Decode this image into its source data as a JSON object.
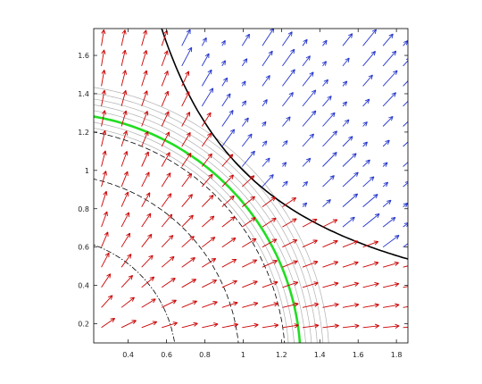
{
  "chart_data": {
    "type": "vector_field",
    "title": "",
    "xlabel": "",
    "ylabel": "",
    "xlim": [
      0.22,
      1.86
    ],
    "ylim": [
      0.1,
      1.74
    ],
    "grid": false,
    "legend": "none",
    "x_ticks": [
      0.4,
      0.6,
      0.8,
      1.0,
      1.2,
      1.4,
      1.6,
      1.8
    ],
    "x_tick_labels": [
      "0.4",
      "0.6",
      "0.8",
      "1",
      "1.2",
      "1.4",
      "1.6",
      "1.8"
    ],
    "y_ticks": [
      0.2,
      0.4,
      0.6,
      0.8,
      1.0,
      1.2,
      1.4,
      1.6
    ],
    "y_tick_labels": [
      "0.2",
      "0.4",
      "0.6",
      "0.8",
      "1",
      "1.2",
      "1.4",
      "1.6"
    ],
    "arrow_grid": {
      "x_start": 0.26,
      "x_step": 0.105,
      "x_count": 16,
      "y_start": 0.18,
      "y_step": 0.105,
      "y_count": 16,
      "inner_color": "#cc0000",
      "outer_color": "#2233cc"
    },
    "series": [
      {
        "kind": "circle",
        "radius": 0.65,
        "style": "dashdot",
        "color": "#000000"
      },
      {
        "kind": "circle",
        "radius": 0.98,
        "style": "dashed",
        "color": "#000000"
      },
      {
        "kind": "circle",
        "radius": 1.22,
        "style": "dashed",
        "color": "#000000"
      },
      {
        "kind": "circle",
        "radius": 1.3,
        "style": "solid",
        "color": "#22dd22"
      },
      {
        "kind": "circle",
        "radius": 1.24,
        "style": "solid",
        "color": "#b0b0b0"
      },
      {
        "kind": "circle",
        "radius": 1.27,
        "style": "solid",
        "color": "#b0b0b0"
      },
      {
        "kind": "circle",
        "radius": 1.33,
        "style": "solid",
        "color": "#b0b0b0"
      },
      {
        "kind": "circle",
        "radius": 1.36,
        "style": "solid",
        "color": "#b0b0b0"
      },
      {
        "kind": "circle",
        "radius": 1.39,
        "style": "solid",
        "color": "#b0b0b0"
      },
      {
        "kind": "circle",
        "radius": 1.42,
        "style": "solid",
        "color": "#b0b0b0"
      },
      {
        "kind": "circle",
        "radius": 1.45,
        "style": "solid",
        "color": "#b0b0b0"
      },
      {
        "kind": "hyperbola",
        "product": 1.0,
        "style": "solid",
        "color": "#000000"
      }
    ]
  }
}
